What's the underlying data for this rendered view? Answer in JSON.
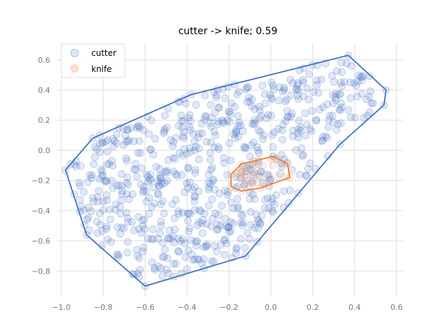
{
  "chart_data": {
    "type": "scatter",
    "title": "cutter -> knife; 0.59",
    "xlabel": "",
    "ylabel": "",
    "xlim": [
      -1.02,
      0.63
    ],
    "ylim": [
      -0.97,
      0.71
    ],
    "xticks": [
      -1.0,
      -0.8,
      -0.6,
      -0.4,
      -0.2,
      0.0,
      0.2,
      0.4,
      0.6
    ],
    "yticks": [
      -0.8,
      -0.6,
      -0.4,
      -0.2,
      0.0,
      0.2,
      0.4,
      0.6
    ],
    "xtick_labels": [
      "−1.0",
      "−0.8",
      "−0.6",
      "−0.4",
      "−0.2",
      "0.0",
      "0.2",
      "0.4",
      "0.6"
    ],
    "ytick_labels": [
      "−0.8",
      "−0.6",
      "−0.4",
      "−0.2",
      "0.0",
      "0.2",
      "0.4",
      "0.6"
    ],
    "grid": true,
    "legend_position": "top-left",
    "series": [
      {
        "name": "cutter",
        "color": "#4472c4",
        "hull": [
          [
            -0.98,
            -0.13
          ],
          [
            -0.85,
            0.08
          ],
          [
            -0.38,
            0.37
          ],
          [
            0.37,
            0.63
          ],
          [
            0.55,
            0.4
          ],
          [
            0.54,
            0.3
          ],
          [
            0.33,
            0.04
          ],
          [
            -0.12,
            -0.7
          ],
          [
            -0.6,
            -0.9
          ],
          [
            -0.88,
            -0.56
          ]
        ],
        "generator": {
          "count": 700,
          "seed": 7
        }
      },
      {
        "name": "knife",
        "color": "#f4a582",
        "hull": [
          [
            -0.19,
            -0.16
          ],
          [
            -0.14,
            -0.09
          ],
          [
            0.01,
            -0.04
          ],
          [
            0.08,
            -0.09
          ],
          [
            0.09,
            -0.18
          ],
          [
            -0.05,
            -0.25
          ],
          [
            -0.14,
            -0.27
          ],
          [
            -0.19,
            -0.24
          ]
        ],
        "generator": {
          "count": 30,
          "seed": 3
        }
      }
    ]
  }
}
